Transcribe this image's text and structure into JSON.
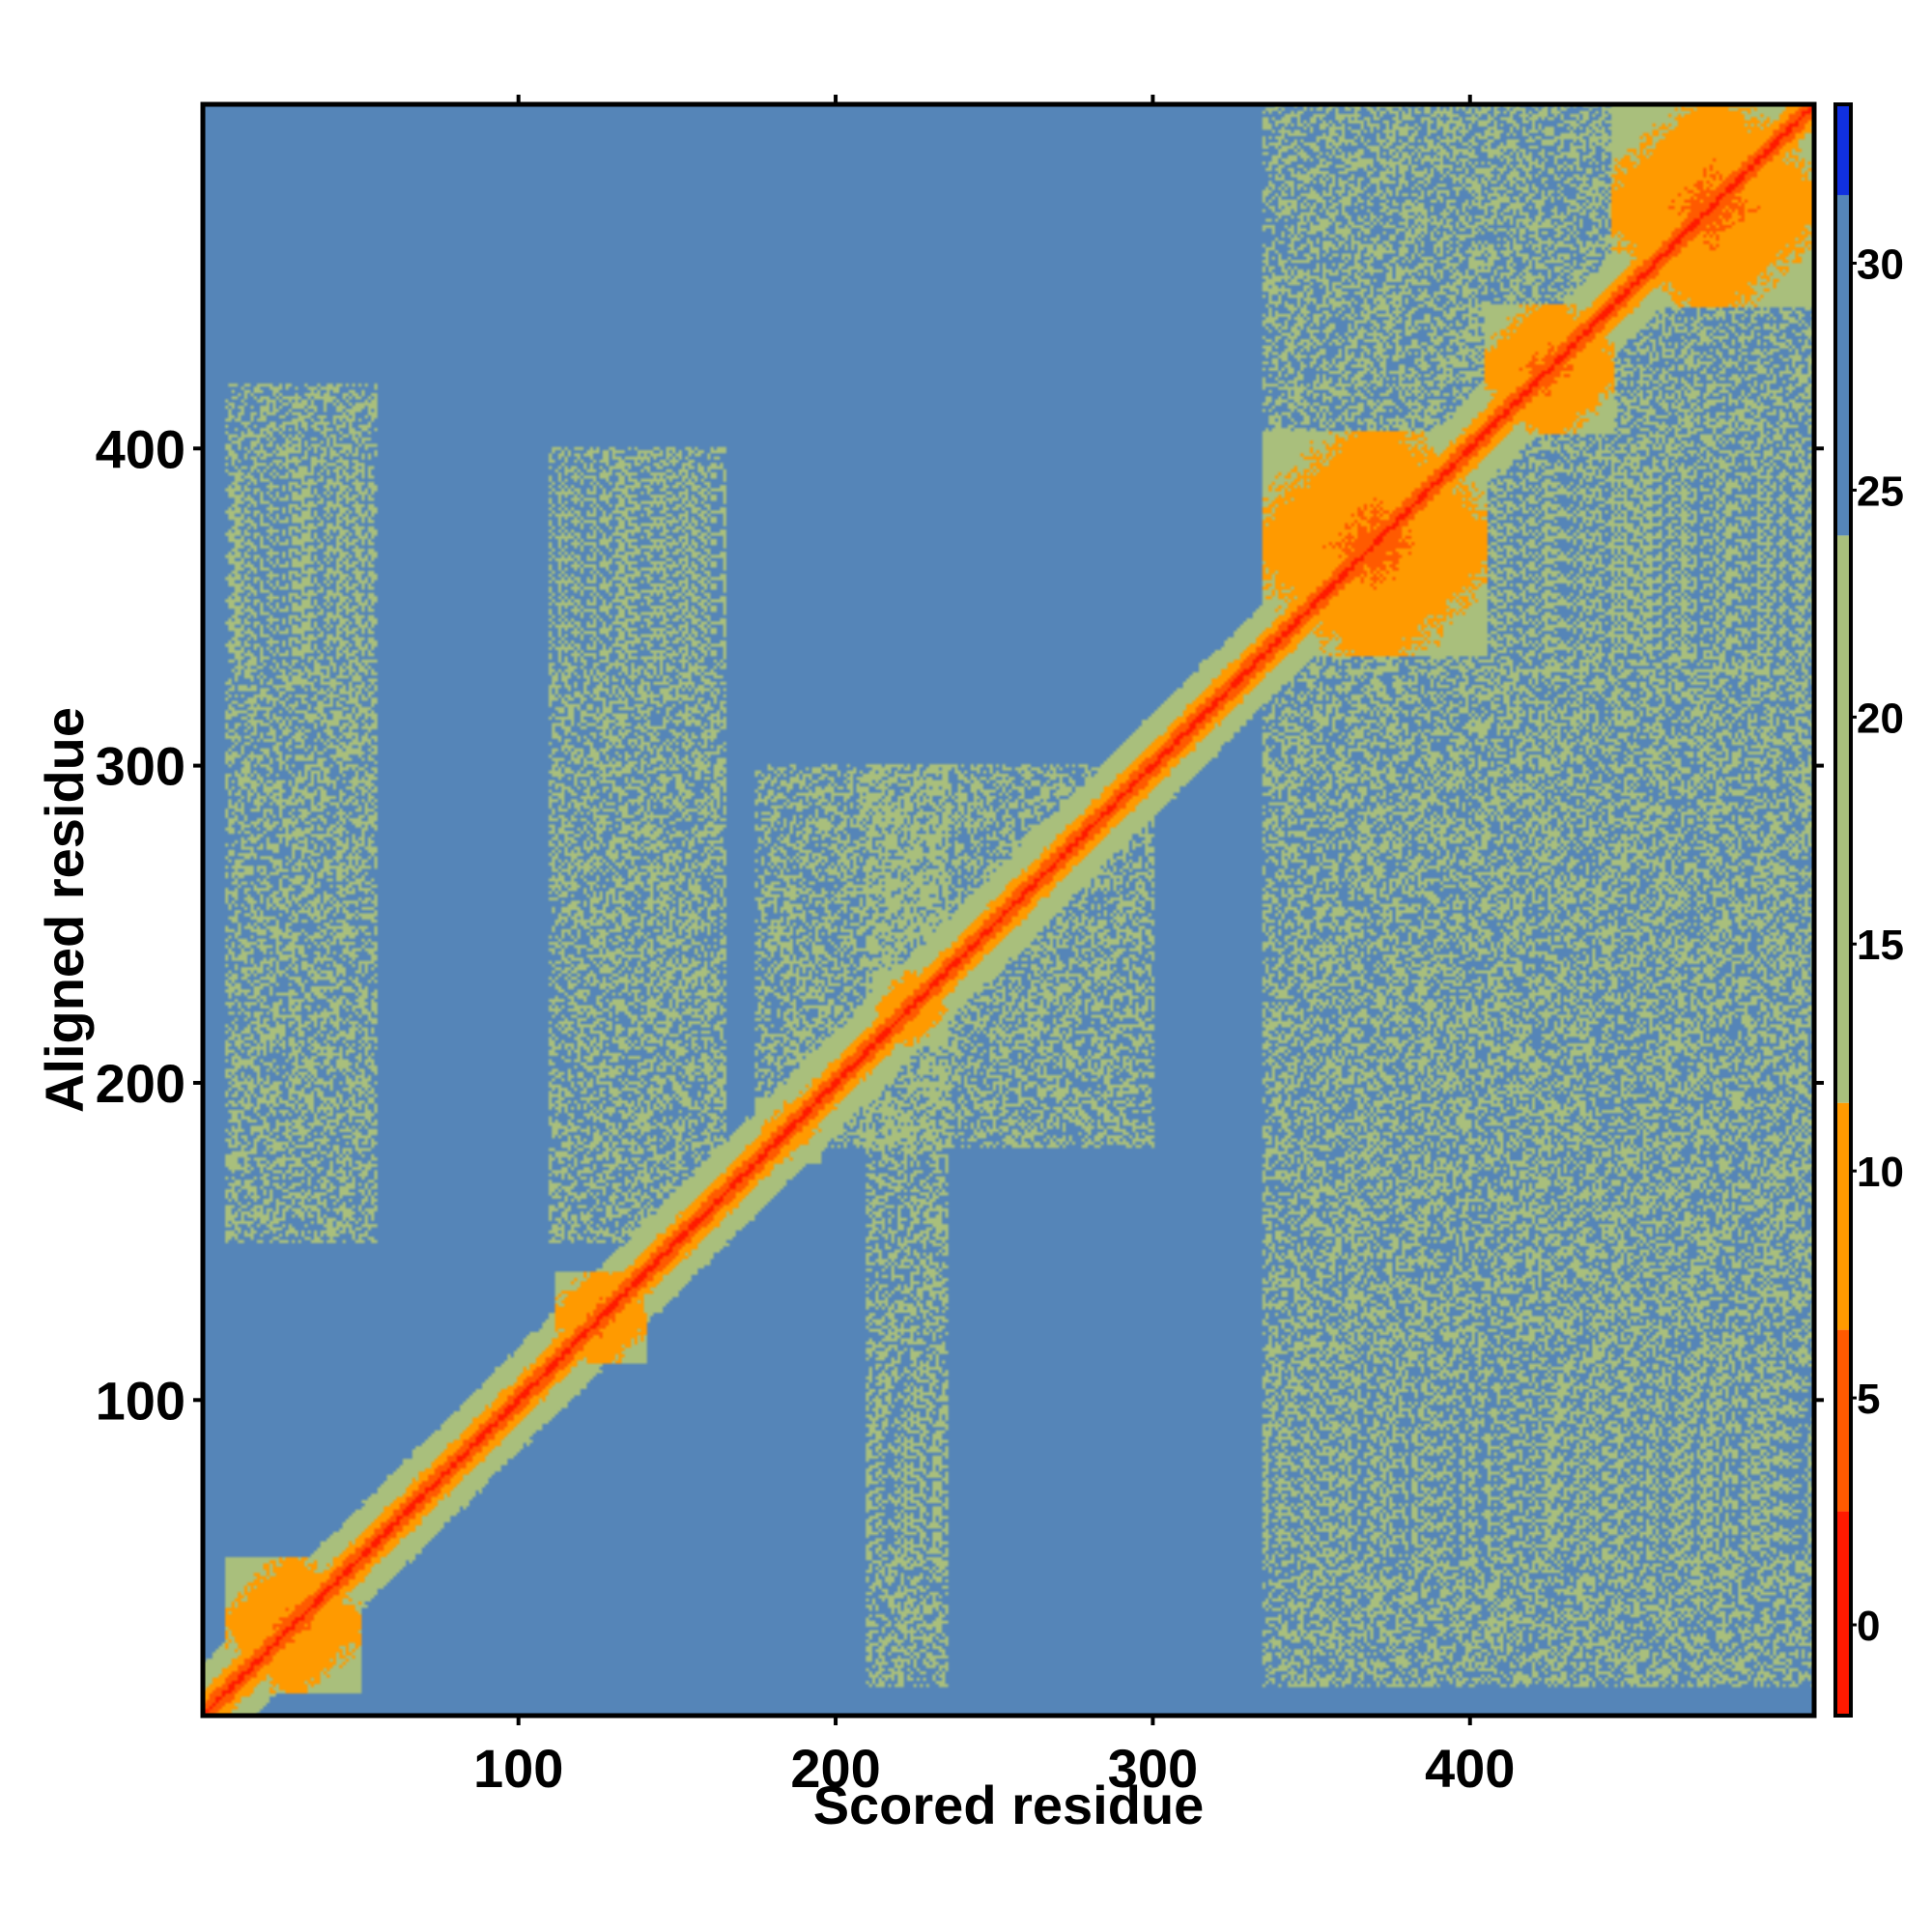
{
  "chart_data": {
    "type": "heatmap",
    "title": "",
    "xlabel": "Scored residue",
    "ylabel": "Aligned residue",
    "xlim": [
      1,
      508
    ],
    "ylim": [
      1,
      508
    ],
    "x_ticks": [
      100,
      200,
      300,
      400
    ],
    "y_ticks": [
      100,
      200,
      300,
      400
    ],
    "colorbar": {
      "ticks": [
        0,
        5,
        10,
        15,
        20,
        25,
        30
      ],
      "range": [
        -2,
        33.5
      ],
      "bands": [
        {
          "from": -2,
          "to": 2.5,
          "color": "#ff1a00"
        },
        {
          "from": 2.5,
          "to": 6.5,
          "color": "#ff5a00"
        },
        {
          "from": 6.5,
          "to": 11.5,
          "color": "#ff9a00"
        },
        {
          "from": 11.5,
          "to": 24,
          "color": "#a9bf7c"
        },
        {
          "from": 24,
          "to": 31.5,
          "color": "#5585b8"
        },
        {
          "from": 31.5,
          "to": 33.5,
          "color": "#1030e0"
        }
      ]
    },
    "background_value": 28,
    "diagonal_value": 0,
    "domains": [
      {
        "start": 8,
        "end": 50,
        "value": 4.5
      },
      {
        "start": 112,
        "end": 140,
        "value": 4
      },
      {
        "start": 175,
        "end": 195,
        "value": 6
      },
      {
        "start": 212,
        "end": 235,
        "value": 5
      },
      {
        "start": 335,
        "end": 405,
        "value": 4
      },
      {
        "start": 405,
        "end": 445,
        "value": 4
      },
      {
        "start": 445,
        "end": 508,
        "value": 4
      }
    ],
    "moderate_regions": [
      {
        "x": [
          8,
          55
        ],
        "y": [
          150,
          420
        ],
        "value": 21
      },
      {
        "x": [
          110,
          165
        ],
        "y": [
          150,
          400
        ],
        "value": 21
      },
      {
        "x": [
          175,
          300
        ],
        "y": [
          180,
          300
        ],
        "value": 20
      },
      {
        "x": [
          210,
          235
        ],
        "y": [
          10,
          300
        ],
        "value": 21
      },
      {
        "x": [
          335,
          508
        ],
        "y": [
          10,
          330
        ],
        "value": 20
      },
      {
        "x": [
          335,
          508
        ],
        "y": [
          330,
          508
        ],
        "value": 18
      }
    ]
  }
}
